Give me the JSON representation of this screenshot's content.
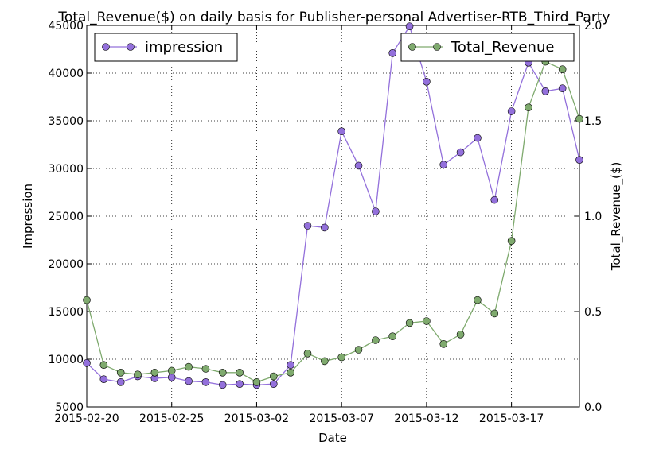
{
  "chart_data": {
    "type": "line",
    "title": "Total_Revenue($) on daily basis for Publisher-personal Advertiser-RTB_Third_Party",
    "xlabel": "Date",
    "ylabel_left": "Impression",
    "ylabel_right": "Total_Revenue_($)",
    "x_ticks": [
      "2015-02-20",
      "2015-02-25",
      "2015-03-02",
      "2015-03-07",
      "2015-03-12",
      "2015-03-17"
    ],
    "y_left_ticks": [
      "5000",
      "10000",
      "15000",
      "20000",
      "25000",
      "30000",
      "35000",
      "40000",
      "45000"
    ],
    "y_right_ticks": [
      "0.0",
      "0.5",
      "1.0",
      "1.5",
      "2.0"
    ],
    "ylim_left": [
      5000,
      45000
    ],
    "ylim_right": [
      0,
      2.0
    ],
    "grid": true,
    "x": [
      "2015-02-20",
      "2015-02-21",
      "2015-02-22",
      "2015-02-23",
      "2015-02-24",
      "2015-02-25",
      "2015-02-26",
      "2015-02-27",
      "2015-02-28",
      "2015-03-01",
      "2015-03-02",
      "2015-03-03",
      "2015-03-04",
      "2015-03-05",
      "2015-03-06",
      "2015-03-07",
      "2015-03-08",
      "2015-03-09",
      "2015-03-10",
      "2015-03-11",
      "2015-03-12",
      "2015-03-13",
      "2015-03-14",
      "2015-03-15",
      "2015-03-16",
      "2015-03-17",
      "2015-03-18",
      "2015-03-19",
      "2015-03-20",
      "2015-03-21"
    ],
    "series": [
      {
        "name": "impression",
        "axis": "left",
        "color": "#9370db",
        "legend_position": "top-left",
        "values": [
          9600,
          7900,
          7600,
          8200,
          8000,
          8100,
          7700,
          7600,
          7300,
          7400,
          7300,
          7400,
          9400,
          24000,
          23800,
          33900,
          30300,
          25500,
          42100,
          44900,
          39100,
          30400,
          31700,
          33200,
          26700,
          36000,
          41100,
          38100,
          38400,
          30900
        ]
      },
      {
        "name": "Total_Revenue",
        "axis": "right",
        "color": "#7faa6e",
        "legend_position": "top-right",
        "values": [
          0.56,
          0.22,
          0.18,
          0.17,
          0.18,
          0.19,
          0.21,
          0.2,
          0.18,
          0.18,
          0.13,
          0.16,
          0.18,
          0.28,
          0.24,
          0.26,
          0.3,
          0.35,
          0.37,
          0.44,
          0.45,
          0.33,
          0.38,
          0.56,
          0.49,
          0.87,
          1.57,
          1.81,
          1.77,
          1.51
        ]
      }
    ]
  }
}
